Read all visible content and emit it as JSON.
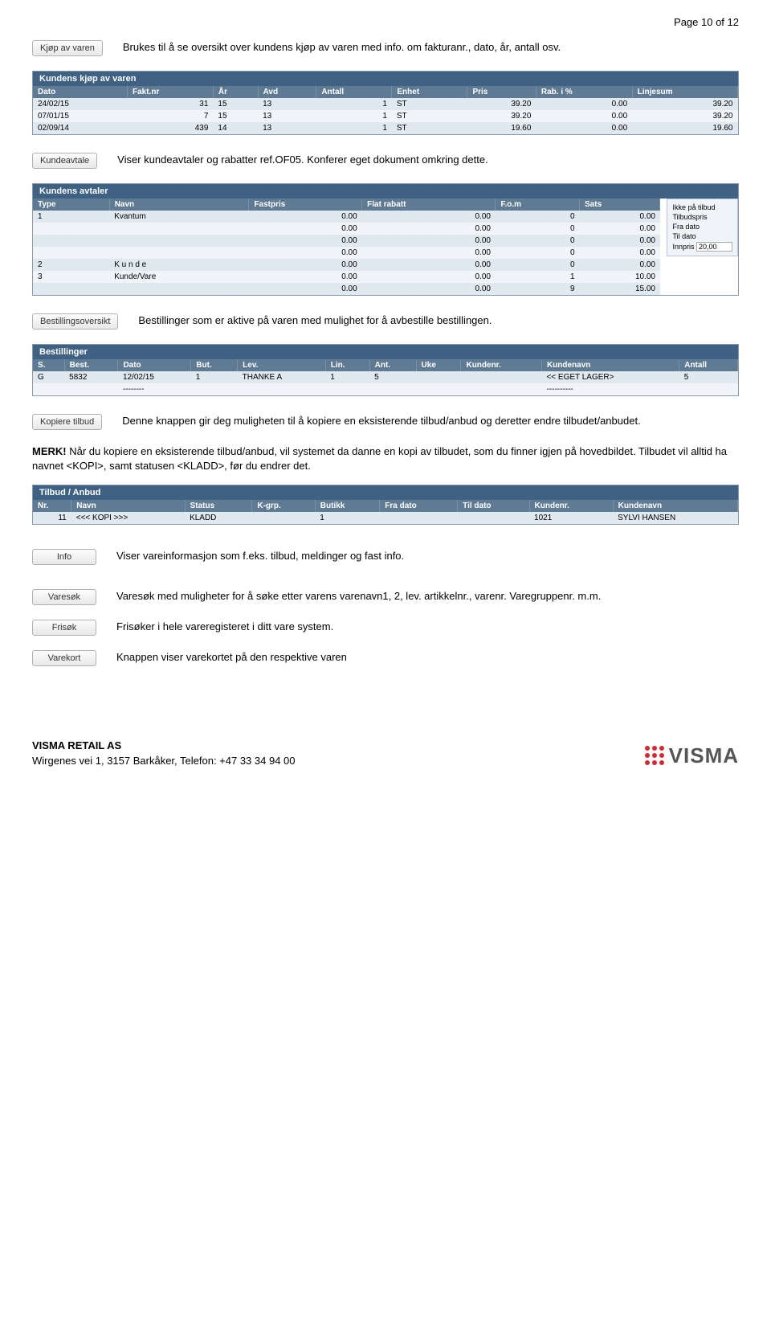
{
  "page_header": "Page 10 of 12",
  "s1": {
    "btn": "Kjøp av varen",
    "desc": "Brukes til å se oversikt over kundens kjøp av varen med info. om fakturanr., dato, år, antall osv."
  },
  "tbl1": {
    "title": "Kundens kjøp av varen",
    "cols": [
      "Dato",
      "Fakt.nr",
      "År",
      "Avd",
      "Antall",
      "Enhet",
      "Pris",
      "Rab. i %",
      "Linjesum"
    ],
    "rows": [
      [
        "24/02/15",
        "31",
        "15",
        "13",
        "1",
        "ST",
        "39.20",
        "0.00",
        "39.20"
      ],
      [
        "07/01/15",
        "7",
        "15",
        "13",
        "1",
        "ST",
        "39.20",
        "0.00",
        "39.20"
      ],
      [
        "02/09/14",
        "439",
        "14",
        "13",
        "1",
        "ST",
        "19.60",
        "0.00",
        "19.60"
      ]
    ]
  },
  "s2": {
    "btn": "Kundeavtale",
    "desc": "Viser kundeavtaler og rabatter ref.OF05. Konferer eget dokument omkring dette."
  },
  "tbl2": {
    "title": "Kundens avtaler",
    "cols": [
      "Type",
      "Navn",
      "Fastpris",
      "Flat rabatt",
      "F.o.m",
      "Sats"
    ],
    "rows": [
      [
        "1",
        "Kvantum",
        "0.00",
        "0.00",
        "0",
        "0.00"
      ],
      [
        "",
        "",
        "0.00",
        "0.00",
        "0",
        "0.00"
      ],
      [
        "",
        "",
        "0.00",
        "0.00",
        "0",
        "0.00"
      ],
      [
        "",
        "",
        "0.00",
        "0.00",
        "0",
        "0.00"
      ],
      [
        "2",
        "K u n d e",
        "0.00",
        "0.00",
        "0",
        "0.00"
      ],
      [
        "3",
        "Kunde/Vare",
        "0.00",
        "0.00",
        "1",
        "10.00"
      ],
      [
        "",
        "",
        "0.00",
        "0.00",
        "9",
        "15.00"
      ]
    ],
    "side": {
      "l1": "Ikke på tilbud",
      "l2": "Tilbudspris",
      "l3": "Fra dato",
      "l4": "Til dato",
      "l5": "Innpris",
      "val": "20,00"
    }
  },
  "s3": {
    "btn": "Bestillingsoversikt",
    "desc": "Bestillinger som er aktive på varen med mulighet for å avbestille bestillingen."
  },
  "tbl3": {
    "title": "Bestillinger",
    "cols": [
      "S.",
      "Best.",
      "Dato",
      "But.",
      "Lev.",
      "Lin.",
      "Ant.",
      "Uke",
      "Kundenr.",
      "Kundenavn",
      "Antall"
    ],
    "rows": [
      [
        "G",
        "5832",
        "12/02/15",
        "1",
        "THANKE A",
        "1",
        "5",
        "",
        "",
        "<< EGET LAGER>",
        "5"
      ],
      [
        "",
        "",
        "--------",
        "",
        "",
        "",
        "",
        "",
        "",
        "----------",
        ""
      ]
    ]
  },
  "s4": {
    "btn": "Kopiere tilbud",
    "desc": "Denne knappen gir deg muligheten til å kopiere en eksisterende tilbud/anbud og deretter endre tilbudet/anbudet."
  },
  "merk": {
    "bold": "MERK!",
    "text": " Når du kopiere en eksisterende tilbud/anbud, vil systemet da danne en kopi av tilbudet, som du finner igjen på hovedbildet. Tilbudet vil alltid ha navnet <KOPI>, samt statusen <KLADD>, før du endrer det."
  },
  "tbl4": {
    "title": "Tilbud / Anbud",
    "cols": [
      "Nr.",
      "Navn",
      "Status",
      "K-grp.",
      "Butikk",
      "Fra dato",
      "Til dato",
      "Kundenr.",
      "Kundenavn"
    ],
    "rows": [
      [
        "11",
        "<<< KOPI >>>",
        "KLADD",
        "",
        "1",
        "",
        "",
        "1021",
        "SYLVI HANSEN"
      ]
    ]
  },
  "s5": {
    "btn": "Info",
    "desc": "Viser vareinformasjon som f.eks. tilbud, meldinger og fast info."
  },
  "s6": {
    "btn": "Varesøk",
    "desc": "Varesøk med muligheter for å søke etter varens varenavn1, 2, lev. artikkelnr., varenr. Varegruppenr. m.m."
  },
  "s7": {
    "btn": "Frisøk",
    "desc": "Frisøker i hele vareregisteret i ditt vare system."
  },
  "s8": {
    "btn": "Varekort",
    "desc": "Knappen viser varekortet på den respektive varen"
  },
  "footer": {
    "company": "VISMA RETAIL AS",
    "addr": "Wirgenes vei 1, 3157 Barkåker, Telefon: +47 33 34 94 00",
    "logo": "VISMA"
  }
}
